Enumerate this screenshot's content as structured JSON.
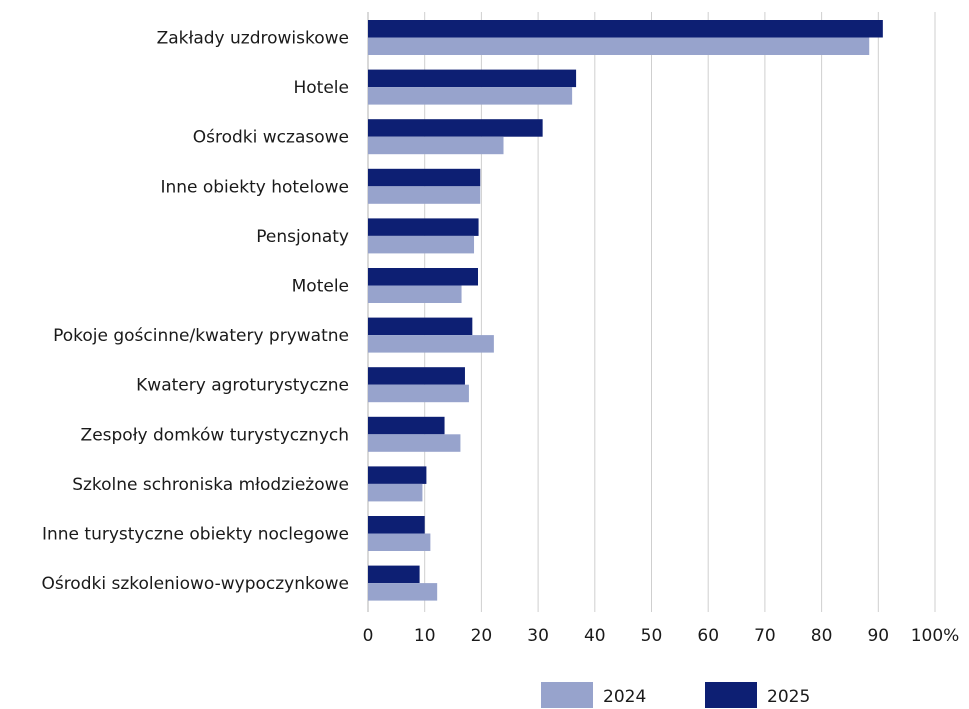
{
  "chart_data": {
    "type": "bar",
    "orientation": "horizontal",
    "categories": [
      "Zakłady uzdrowiskowe",
      "Hotele",
      "Ośrodki wczasowe",
      "Inne obiekty hotelowe",
      "Pensjonaty",
      "Motele",
      "Pokoje gościnne/kwatery prywatne",
      "Kwatery agroturystyczne",
      "Zespoły domków turystycznych",
      "Szkolne schroniska młodzieżowe",
      "Inne turystyczne obiekty noclegowe",
      "Ośrodki szkoleniowo-wypoczynkowe"
    ],
    "series": [
      {
        "name": "2025",
        "color": "#0d1f73",
        "values": [
          90.8,
          36.7,
          30.8,
          19.8,
          19.5,
          19.4,
          18.4,
          17.1,
          13.5,
          10.3,
          10.0,
          9.1
        ]
      },
      {
        "name": "2024",
        "color": "#97a3cc",
        "values": [
          88.4,
          36.0,
          23.9,
          19.8,
          18.7,
          16.5,
          22.2,
          17.8,
          16.3,
          9.6,
          11.0,
          12.2
        ]
      }
    ],
    "xlim": [
      0,
      100
    ],
    "xticks": [
      "0",
      "10",
      "20",
      "30",
      "40",
      "50",
      "60",
      "70",
      "80",
      "90",
      "100%"
    ],
    "grid": "vertical",
    "legend": {
      "position": "bottom",
      "entries": [
        {
          "label": "2024",
          "color": "#97a3cc"
        },
        {
          "label": "2025",
          "color": "#0d1f73"
        }
      ]
    },
    "title": "",
    "xlabel": "",
    "ylabel": ""
  }
}
